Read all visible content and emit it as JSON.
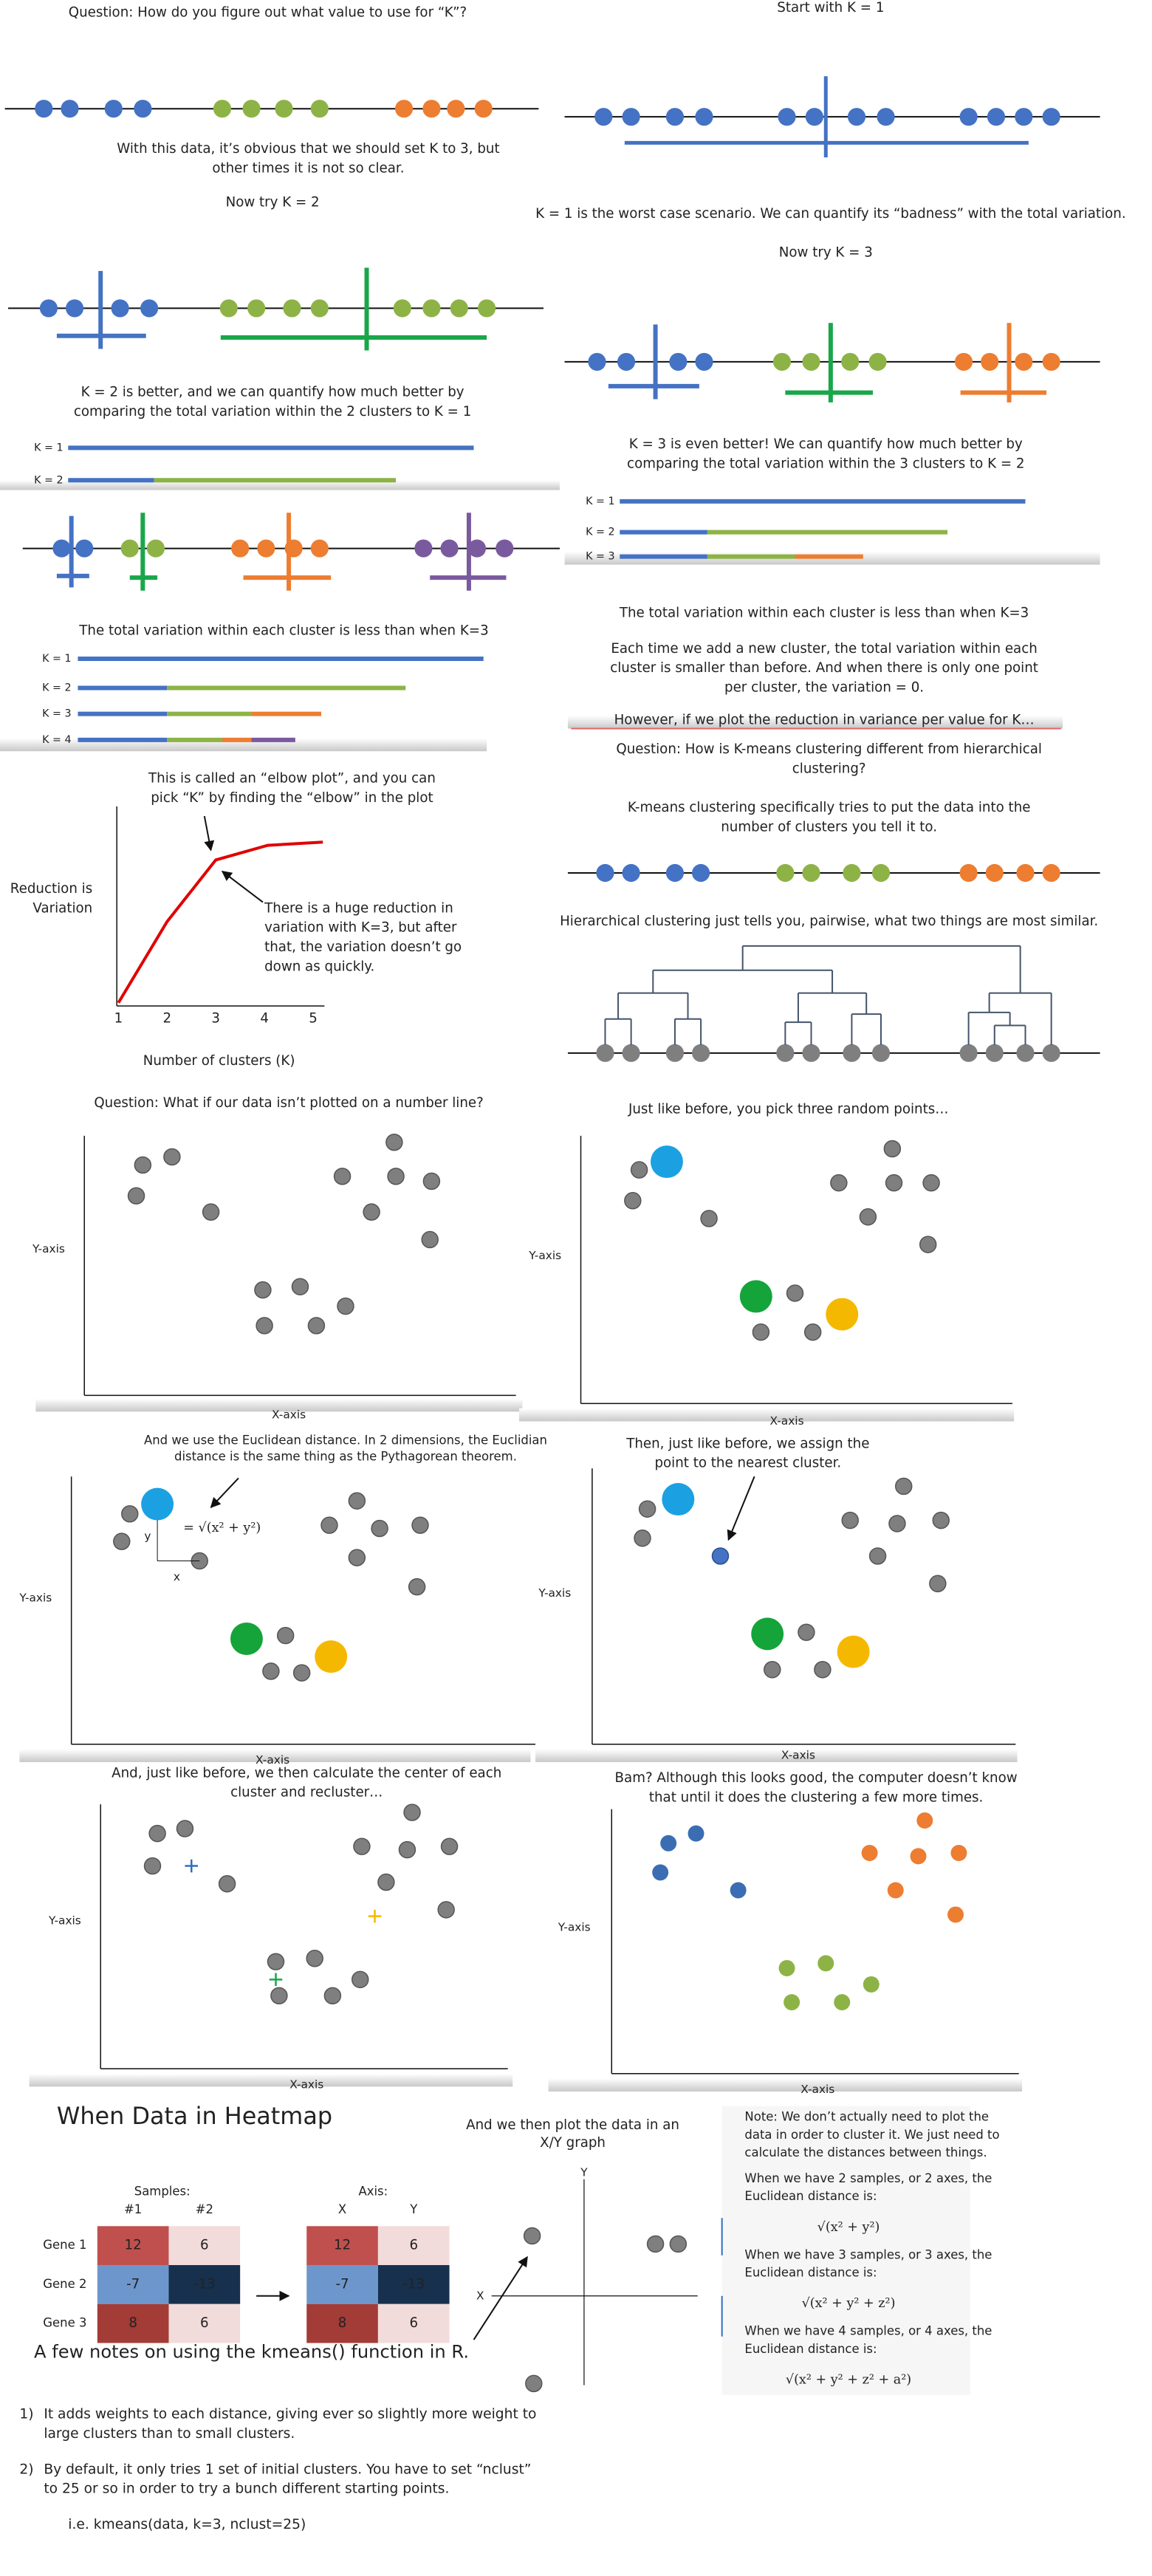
{
  "intro": {
    "question": "Question: How do you figure out what value to use for “K”?",
    "obvious": [
      "With this data, it’s obvious that we should set K to 3, but",
      "other times it is not so clear."
    ],
    "start": "Start with K = 1",
    "k1_note": "K = 1 is the worst case scenario. We can quantify its “badness” with the total variation.",
    "try_k2": "Now try K = 2",
    "try_k3": "Now try K = 3",
    "k2_note": [
      "K = 2 is better, and we can quantify how much better by",
      "comparing the total variation within the 2 clusters to K = 1"
    ],
    "k3_note": [
      "K = 3 is even better! We can quantify how much better by",
      "comparing the total variation within the 3 clusters to K = 2"
    ],
    "k_labels": [
      "K = 1",
      "K = 2",
      "K = 3",
      "K = 4"
    ],
    "k4_note": "The total variation within each cluster is less than when K=3",
    "more_clusters": [
      "The total variation within each cluster is less than when K=3",
      "Each time we add a new cluster, the total variation within each",
      "cluster is smaller than before. And when there is only one point",
      "per cluster, the variation = 0."
    ],
    "however": "However, if we plot the reduction in variance per value for K…"
  },
  "elbow": {
    "caption": [
      "This is called an “elbow plot”, and you can",
      "pick “K” by finding the “elbow” in the plot"
    ],
    "y_label": [
      "Reduction is",
      "Variation"
    ],
    "note": [
      "There is a huge reduction in",
      "variation with K=3, but after",
      "that, the variation doesn’t go",
      "down as quickly."
    ],
    "ticks": [
      1,
      2,
      3,
      4,
      5
    ],
    "x_label": "Number of clusters (K)"
  },
  "hierarchical": {
    "question": [
      "Question: How is K-means clustering different from hierarchical",
      "clustering?"
    ],
    "kmeans": [
      "K-means clustering specifically tries to put the data into the",
      "number of clusters you tell it to."
    ],
    "hier": "Hierarchical clustering just tells you, pairwise, what two things are most similar."
  },
  "scatter": {
    "question": "Question: What if our data isn’t plotted on a number line?",
    "pick": "Just like before, you pick three random points…",
    "euclid": [
      "And we use the Euclidean distance. In 2 dimensions, the Euclidian",
      "distance is the same thing as the Pythagorean theorem."
    ],
    "leg_y": "y",
    "leg_x": "x",
    "formula": "= √(x² + y²)",
    "assign": [
      "Then, just like before, we assign the",
      "point to the nearest cluster."
    ],
    "recluster": [
      "And, just like before, we then calculate the center of each",
      "cluster and recluster…"
    ],
    "bam": [
      "Bam? Although this looks good, the computer doesn’t know",
      "that until it does the clustering a few more times."
    ],
    "y_axis": "Y-axis",
    "x_axis": "X-axis"
  },
  "heatmap": {
    "title": "When Data in Heatmap",
    "samples_label": "Samples:",
    "sample_names": [
      "#1",
      "#2"
    ],
    "axis_label": "Axis:",
    "axis_names": [
      "X",
      "Y"
    ],
    "genes": [
      "Gene 1",
      "Gene 2",
      "Gene 3"
    ],
    "values": [
      [
        12,
        6
      ],
      [
        -7,
        -13
      ],
      [
        8,
        6
      ]
    ]
  },
  "plot": {
    "caption": [
      "And we then plot the data in an",
      "X/Y graph"
    ],
    "y": "Y",
    "x": "X"
  },
  "notes": {
    "intro": [
      "Note: We don’t actually need to plot the",
      "data in order to cluster it. We just need to",
      "calculate the distances between things."
    ],
    "cases": [
      {
        "lines": [
          "When we have 2 samples, or 2 axes, the",
          "Euclidean distance is:"
        ],
        "formula": "√(x² + y²)"
      },
      {
        "lines": [
          "When we have 3 samples, or 3 axes, the",
          "Euclidean distance is:"
        ],
        "formula": "√(x² + y² + z²)"
      },
      {
        "lines": [
          "When we have 4 samples, or 4 axes, the",
          "Euclidean distance is:"
        ],
        "formula": "√(x² + y² + z² + a²)"
      }
    ]
  },
  "kmeans_r": {
    "title": "A few notes on using the kmeans() function in R.",
    "items": [
      {
        "number": "1)",
        "lines": [
          "It adds weights to each distance, giving ever so slightly more weight to",
          "large clusters than to small clusters."
        ]
      },
      {
        "number": "2)",
        "lines": [
          "By default, it only tries 1 set of initial clusters. You have to set “nclust”",
          "to 25 or so in order to try a bunch different starting points."
        ]
      }
    ],
    "example": "i.e. kmeans(data, k=3, nclust=25)"
  }
}
